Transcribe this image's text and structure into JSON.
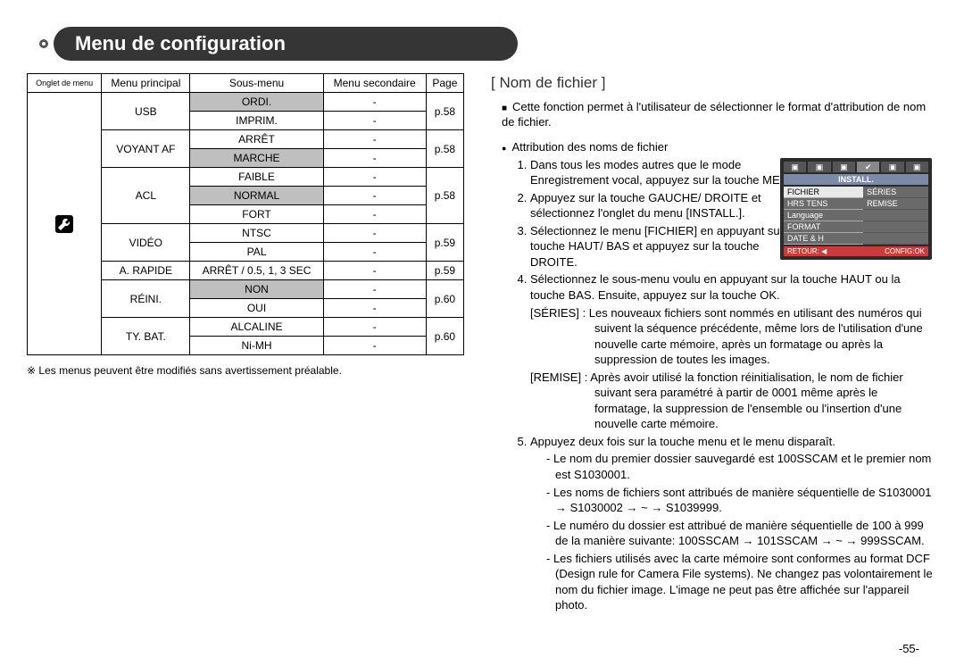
{
  "title": "Menu de configuration",
  "table": {
    "headers": [
      "Onglet de menu",
      "Menu principal",
      "Sous-menu",
      "Menu secondaire",
      "Page"
    ],
    "rows": [
      {
        "main": "USB",
        "sub": "ORDI.",
        "sec": "-",
        "page": "p.58",
        "main_rowspan": 2,
        "page_rowspan": 2,
        "sub_gray": true
      },
      {
        "sub": "IMPRIM.",
        "sec": "-"
      },
      {
        "main": "VOYANT AF",
        "sub": "ARRÊT",
        "sec": "-",
        "page": "p.58",
        "main_rowspan": 2,
        "page_rowspan": 2
      },
      {
        "sub": "MARCHE",
        "sec": "-",
        "sub_gray": true
      },
      {
        "main": "ACL",
        "sub": "FAIBLE",
        "sec": "-",
        "page": "p.58",
        "main_rowspan": 3,
        "page_rowspan": 3
      },
      {
        "sub": "NORMAL",
        "sec": "-",
        "sub_gray": true
      },
      {
        "sub": "FORT",
        "sec": "-"
      },
      {
        "main": "VIDÉO",
        "sub": "NTSC",
        "sec": "-",
        "page": "p.59",
        "main_rowspan": 2,
        "page_rowspan": 2
      },
      {
        "sub": "PAL",
        "sec": "-"
      },
      {
        "main": "A. RAPIDE",
        "sub": "ARRÊT / 0.5, 1, 3 SEC",
        "sec": "-",
        "page": "p.59"
      },
      {
        "main": "RÉINI.",
        "sub": "NON",
        "sec": "-",
        "page": "p.60",
        "main_rowspan": 2,
        "page_rowspan": 2,
        "sub_gray": true
      },
      {
        "sub": "OUI",
        "sec": "-"
      },
      {
        "main": "TY. BAT.",
        "sub": "ALCALINE",
        "sec": "-",
        "page": "p.60",
        "main_rowspan": 2,
        "page_rowspan": 2
      },
      {
        "sub": "Ni-MH",
        "sec": "-"
      }
    ],
    "icon_rowspan": 14
  },
  "table_note": "※ Les menus peuvent être modifiés sans avertissement préalable.",
  "right": {
    "heading": "[ Nom de fichier ]",
    "intro": "Cette fonction permet à l'utilisateur de sélectionner le format d'attribution de nom de fichier.",
    "subhead": "Attribution des noms de fichier",
    "step1": "Dans tous les modes autres que le mode Enregistrement vocal, appuyez sur la touche MENU.",
    "step2": "Appuyez sur la touche GAUCHE/ DROITE et sélectionnez l'onglet du menu [INSTALL.].",
    "step3": "Sélectionnez le menu [FICHIER] en appuyant sur la touche HAUT/ BAS et appuyez sur la touche DROITE.",
    "step4_lead": "Sélectionnez le sous-menu voulu en appuyant sur la touche HAUT ou la touche BAS. Ensuite, appuyez sur la touche OK.",
    "series_label": "[SÉRIES]",
    "series_text": ": Les nouveaux fichiers sont nommés en utilisant des numéros qui suivent la séquence précédente, même lors de l'utilisation d'une nouvelle carte mémoire, après un formatage ou après la suppression de toutes les images.",
    "remise_label": "[REMISE]",
    "remise_text": ": Après avoir utilisé la fonction réinitialisation, le nom de fichier suivant sera paramétré à partir de 0001 même après le formatage, la suppression de l'ensemble ou l'insertion d'une nouvelle carte mémoire.",
    "step5_lead": "Appuyez deux fois sur la touche menu et le menu disparaît.",
    "d1": "Le nom du premier dossier sauvegardé est 100SSCAM et le premier nom est S1030001.",
    "d2": "Les noms de fichiers sont attribués de manière séquentielle de S1030001 → S1030002 → ~ → S1039999.",
    "d3": "Le numéro du dossier est attribué de manière séquentielle de 100 à 999 de la manière suivante: 100SSCAM → 101SSCAM → ~ → 999SSCAM.",
    "d4": "Les fichiers utilisés avec la carte mémoire sont conformes au format DCF (Design rule for Camera File systems). Ne changez pas volontairement le nom du fichier image. L'image ne peut pas être affichée sur l'appareil photo."
  },
  "screen": {
    "install_label": "INSTALL.",
    "rows": [
      {
        "l": "FICHIER",
        "r": "SÉRIES",
        "l_sel": true
      },
      {
        "l": "HRS TENS",
        "r": "REMISE"
      },
      {
        "l": "Language",
        "r": ""
      },
      {
        "l": "FORMAT",
        "r": ""
      },
      {
        "l": "DATE & H",
        "r": ""
      }
    ],
    "foot_left": "RETOUR: ◀",
    "foot_right": "CONFIG:OK"
  },
  "page_number": "-55-",
  "colors": {
    "title_bg": "#353535",
    "gray_cell": "#bfbfbf",
    "screen_bg": "#2b2b2b",
    "screen_install_bar": "#7a8aa8",
    "screen_foot": "#c93c3c"
  }
}
